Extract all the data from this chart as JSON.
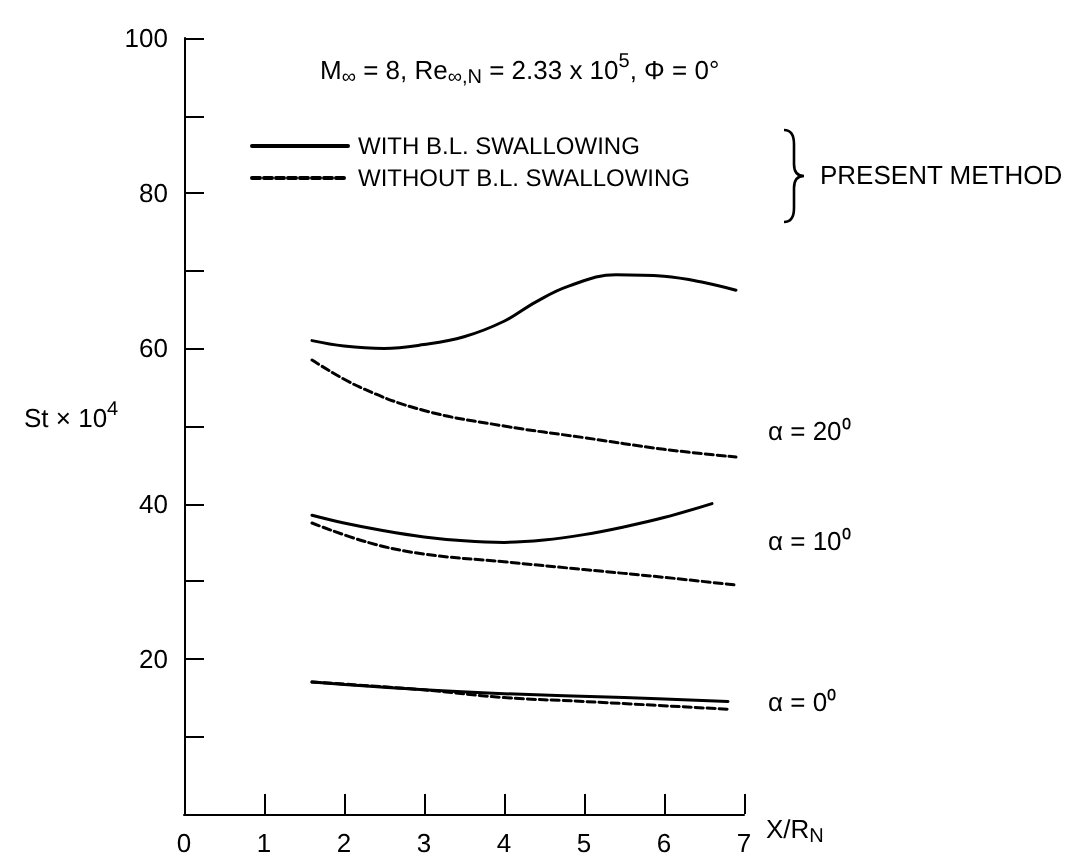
{
  "chart_data": {
    "type": "line",
    "title": "M$_{∞}$ = 8, Re$_{∞,N}$ = 2.33 x 10$^{5}$, Φ = 0°",
    "xlabel": "X/R$_{N}$",
    "ylabel": "St × 10$^{4}$",
    "xlim": [
      0,
      7
    ],
    "xticks": [
      0,
      1,
      2,
      3,
      4,
      5,
      6,
      7
    ],
    "ylim": [
      0,
      100
    ],
    "yticks": [
      {
        "value": 0,
        "label": null
      },
      {
        "value": 10,
        "label": null
      },
      20,
      {
        "value": 30,
        "label": null
      },
      40,
      {
        "value": 50,
        "label": null
      },
      60,
      {
        "value": 70,
        "label": null
      },
      80,
      {
        "value": 90,
        "label": null
      },
      100
    ],
    "grid": false,
    "legend": "top",
    "marker": "none",
    "annotations": [
      "PRESENT METHOD",
      "α = 20⁰",
      "α = 10⁰",
      "α = 0⁰"
    ],
    "series": [
      {
        "name": "WITH B.L. SWALLOWING",
        "color": "#000000",
        "line_style": "solid",
        "x": [
          1.6,
          2.0,
          2.5,
          3.0,
          3.5,
          4.0,
          4.4,
          4.8,
          5.4,
          6.0,
          6.5,
          6.9
        ],
        "values": [
          61,
          60.3,
          60,
          60.5,
          61.5,
          63.5,
          66,
          68,
          69.5,
          69.3,
          68.5,
          67.5
        ]
      },
      {
        "name": "WITHOUT B.L. SWALLOWING",
        "color": "#000000",
        "line_style": "dashed",
        "x": [
          1.6,
          2.2,
          3.0,
          4.0,
          5.0,
          6.0,
          6.9
        ],
        "values": [
          58.5,
          55,
          52,
          50,
          48.5,
          47,
          46
        ]
      },
      {
        "color": "#000000",
        "line_style": "solid",
        "x": [
          1.6,
          2.0,
          2.5,
          3.0,
          3.5,
          4.0,
          4.5,
          5.0,
          5.5,
          6.0,
          6.6
        ],
        "values": [
          38.5,
          37.5,
          36.5,
          35.7,
          35.2,
          35,
          35.3,
          36,
          37,
          38.2,
          40
        ]
      },
      {
        "color": "#000000",
        "line_style": "dashed",
        "x": [
          1.6,
          2.3,
          3.0,
          4.0,
          5.0,
          6.0,
          6.9
        ],
        "values": [
          37.5,
          35,
          33.5,
          32.5,
          31.5,
          30.5,
          29.5
        ]
      },
      {
        "color": "#000000",
        "line_style": "solid",
        "x": [
          1.6,
          3.0,
          4.0,
          5.5,
          6.8
        ],
        "values": [
          17,
          16,
          15.5,
          15,
          14.5
        ]
      },
      {
        "color": "#000000",
        "line_style": "dashed",
        "x": [
          1.6,
          3.0,
          4.0,
          5.0,
          6.8
        ],
        "values": [
          17,
          16,
          15,
          14.5,
          13.5
        ]
      }
    ]
  }
}
